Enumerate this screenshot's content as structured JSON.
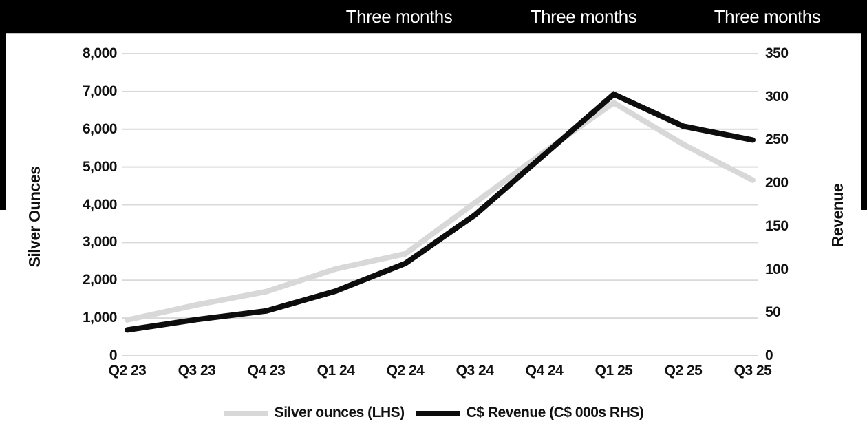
{
  "header": {
    "background_color": "#000000",
    "text_color": "#ffffff",
    "columns": [
      {
        "label": "Three months"
      },
      {
        "label": "Three months"
      },
      {
        "label": "Three months"
      }
    ]
  },
  "chart_data": {
    "type": "line",
    "categories": [
      "Q2 23",
      "Q3 23",
      "Q4 23",
      "Q1 24",
      "Q2 24",
      "Q3 24",
      "Q4 24",
      "Q1 25",
      "Q2 25",
      "Q3 25"
    ],
    "series": [
      {
        "name": "Silver ounces (LHS)",
        "axis": "left",
        "color": "#d8d8d8",
        "values": [
          950,
          1350,
          1700,
          2300,
          2700,
          4050,
          5400,
          6700,
          5600,
          4650
        ]
      },
      {
        "name": "C$ Revenue (C$ 000s RHS)",
        "axis": "right",
        "color": "#0d0d0d",
        "values": [
          30,
          42,
          52,
          75,
          107,
          163,
          233,
          303,
          266,
          250
        ]
      }
    ],
    "left_axis": {
      "title": "Silver Ounces",
      "min": 0,
      "max": 8000,
      "tick_step": 1000,
      "ticks": [
        "0",
        "1,000",
        "2,000",
        "3,000",
        "4,000",
        "5,000",
        "6,000",
        "7,000",
        "8,000"
      ]
    },
    "right_axis": {
      "title": "Revenue",
      "min": 0,
      "max": 350,
      "tick_step": 50,
      "ticks": [
        "0",
        "50",
        "100",
        "150",
        "200",
        "250",
        "300",
        "350"
      ]
    },
    "grid": true,
    "gridline_color": "#d9d9d9",
    "legend_position": "bottom"
  }
}
